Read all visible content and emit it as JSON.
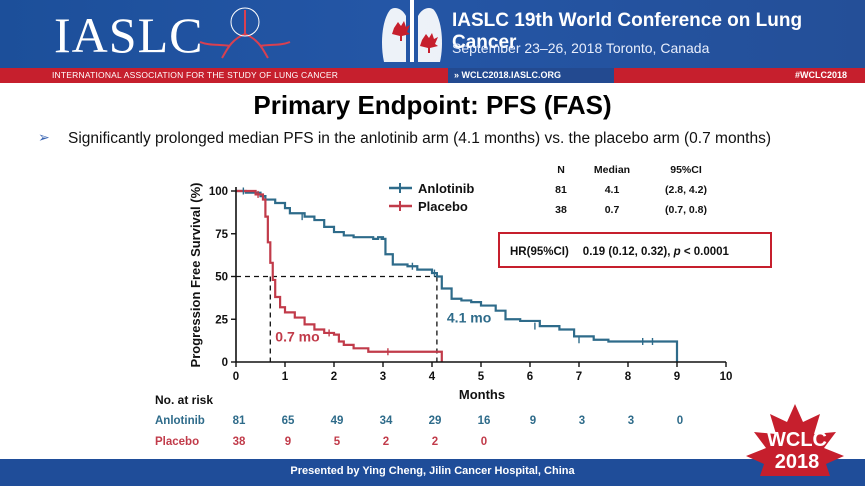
{
  "header": {
    "logo_text": "IASLC",
    "logo_subtitle": "INTERNATIONAL ASSOCIATION FOR THE STUDY OF LUNG CANCER",
    "conference_title": "IASLC  19th World Conference on Lung Cancer",
    "conference_dates": "September 23–26, 2018  Toronto, Canada",
    "website": "» WCLC2018.IASLC.ORG",
    "hashtag": "#WCLC2018",
    "brand_blue": "#1f4d99",
    "brand_red": "#c61f2d"
  },
  "slide": {
    "title": "Primary Endpoint: PFS (FAS)",
    "bullet_marker": "➢",
    "bullet": "Significantly prolonged median PFS in the anlotinib arm (4.1 months) vs. the placebo arm (0.7 months)"
  },
  "footer": {
    "presenter": "Presented by Ying Cheng, Jilin Cancer Hospital, China",
    "badge_line1": "WCLC",
    "badge_line2": "2018"
  },
  "chart_data": {
    "type": "line",
    "step": true,
    "xlabel": "Months",
    "ylabel": "Progression Free Survival (%)",
    "xlim": [
      0,
      10
    ],
    "ylim": [
      0,
      100
    ],
    "xticks": [
      "0",
      "1",
      "2",
      "3",
      "4",
      "5",
      "6",
      "7",
      "8",
      "9",
      "10"
    ],
    "yticks": [
      "0",
      "25",
      "50",
      "75",
      "100"
    ],
    "legend_position": "top-center",
    "series": [
      {
        "name": "Anlotinib",
        "color": "#2e6b8a",
        "points": [
          [
            0,
            100
          ],
          [
            0.2,
            99
          ],
          [
            0.5,
            97
          ],
          [
            0.6,
            95
          ],
          [
            0.8,
            93
          ],
          [
            1.0,
            90
          ],
          [
            1.1,
            87
          ],
          [
            1.4,
            85
          ],
          [
            1.6,
            83
          ],
          [
            1.8,
            79
          ],
          [
            2.0,
            76
          ],
          [
            2.2,
            74
          ],
          [
            2.4,
            73
          ],
          [
            2.8,
            72
          ],
          [
            2.9,
            73
          ],
          [
            3.0,
            72
          ],
          [
            2.95,
            72
          ],
          [
            3.05,
            63
          ],
          [
            3.2,
            57
          ],
          [
            3.5,
            56
          ],
          [
            3.7,
            54
          ],
          [
            4.0,
            52
          ],
          [
            4.1,
            50
          ],
          [
            4.2,
            43
          ],
          [
            4.4,
            37
          ],
          [
            4.6,
            36
          ],
          [
            4.8,
            35
          ],
          [
            5.0,
            33
          ],
          [
            5.3,
            30
          ],
          [
            5.5,
            25
          ],
          [
            5.8,
            24
          ],
          [
            6.2,
            21
          ],
          [
            6.6,
            19
          ],
          [
            6.9,
            15
          ],
          [
            7.3,
            13
          ],
          [
            7.6,
            12
          ],
          [
            8.0,
            12
          ],
          [
            9.0,
            12
          ],
          [
            9.0,
            0
          ]
        ]
      },
      {
        "name": "Placebo",
        "color": "#c13b4a",
        "points": [
          [
            0,
            100
          ],
          [
            0.4,
            98
          ],
          [
            0.55,
            95
          ],
          [
            0.6,
            85
          ],
          [
            0.65,
            70
          ],
          [
            0.7,
            58
          ],
          [
            0.75,
            48
          ],
          [
            0.8,
            38
          ],
          [
            0.9,
            32
          ],
          [
            1.0,
            29
          ],
          [
            1.2,
            26
          ],
          [
            1.4,
            22
          ],
          [
            1.6,
            19
          ],
          [
            1.8,
            17
          ],
          [
            2.0,
            16
          ],
          [
            2.1,
            12
          ],
          [
            2.2,
            10
          ],
          [
            2.4,
            8
          ],
          [
            2.7,
            6
          ],
          [
            3.0,
            6
          ],
          [
            3.3,
            6
          ],
          [
            4.0,
            6
          ],
          [
            4.2,
            6
          ],
          [
            4.2,
            0
          ]
        ]
      }
    ],
    "median_lines": [
      {
        "x": 0.7,
        "y": 50
      },
      {
        "x": 4.1,
        "y": 50
      }
    ],
    "annotations": [
      {
        "text": "0.7 mo",
        "series": "Placebo"
      },
      {
        "text": "4.1 mo",
        "series": "Anlotinib"
      }
    ],
    "summary_table": {
      "headers": [
        "N",
        "Median",
        "95%CI"
      ],
      "rows": [
        [
          "81",
          "4.1",
          "(2.8, 4.2)"
        ],
        [
          "38",
          "0.7",
          "(0.7, 0.8)"
        ]
      ]
    },
    "hazard_ratio": {
      "label": "HR(95%CI)",
      "value": "0.19 (0.12, 0.32), ",
      "p_symbol": "p",
      "p_value": " < 0.0001"
    },
    "risk_table": {
      "title": "No. at risk",
      "rows": [
        {
          "name": "Anlotinib",
          "color": "#2e6b8a",
          "values": [
            "81",
            "65",
            "49",
            "34",
            "29",
            "16",
            "9",
            "3",
            "3",
            "0"
          ]
        },
        {
          "name": "Placebo",
          "color": "#c13b4a",
          "values": [
            "38",
            "9",
            "5",
            "2",
            "2",
            "0"
          ]
        }
      ]
    }
  }
}
